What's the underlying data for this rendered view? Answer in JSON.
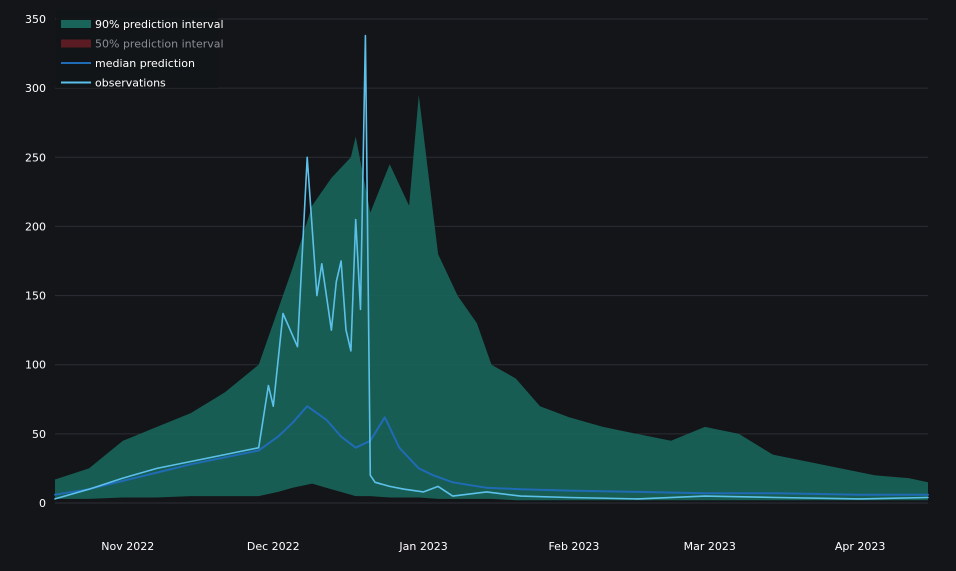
{
  "chart_data": {
    "type": "area",
    "title": "",
    "xlabel": "",
    "ylabel": "",
    "x_range": [
      "2022-10-17",
      "2023-04-15"
    ],
    "ylim": [
      0,
      350
    ],
    "y_ticks": [
      0,
      50,
      100,
      150,
      200,
      250,
      300,
      350
    ],
    "x_ticks": [
      {
        "date": "2022-11-01",
        "label": "Nov 2022"
      },
      {
        "date": "2022-12-01",
        "label": "Dec 2022"
      },
      {
        "date": "2023-01-01",
        "label": "Jan 2023"
      },
      {
        "date": "2023-02-01",
        "label": "Feb 2023"
      },
      {
        "date": "2023-03-01",
        "label": "Mar 2023"
      },
      {
        "date": "2023-04-01",
        "label": "Apr 2023"
      }
    ],
    "grid": "horizontal",
    "legend_position": "top-left",
    "legend": [
      {
        "label": "90% prediction interval",
        "color": "#1a655a",
        "kind": "band",
        "dim": false
      },
      {
        "label": "50% prediction interval",
        "color": "#5a1c22",
        "kind": "band",
        "dim": true
      },
      {
        "label": "median prediction",
        "color": "#1f6bb5",
        "kind": "line",
        "dim": false
      },
      {
        "label": "observations",
        "color": "#5cc1ea",
        "kind": "line",
        "dim": false
      }
    ],
    "colors": {
      "background": "#131519",
      "grid": "#2c2f36",
      "band90": "#1a655a",
      "band50": "#5a1c22",
      "median": "#1f6bb5",
      "observations": "#5cc1ea"
    },
    "series": [
      {
        "name": "90% prediction interval",
        "kind": "band",
        "x": [
          "2022-10-17",
          "2022-10-24",
          "2022-10-31",
          "2022-11-07",
          "2022-11-14",
          "2022-11-21",
          "2022-11-28",
          "2022-12-02",
          "2022-12-05",
          "2022-12-09",
          "2022-12-13",
          "2022-12-17",
          "2022-12-18",
          "2022-12-21",
          "2022-12-25",
          "2022-12-29",
          "2022-12-31",
          "2023-01-04",
          "2023-01-08",
          "2023-01-12",
          "2023-01-15",
          "2023-01-20",
          "2023-01-25",
          "2023-01-31",
          "2023-02-07",
          "2023-02-14",
          "2023-02-21",
          "2023-02-28",
          "2023-03-07",
          "2023-03-14",
          "2023-03-21",
          "2023-03-28",
          "2023-04-04",
          "2023-04-11",
          "2023-04-15"
        ],
        "upper": [
          17,
          25,
          45,
          55,
          65,
          80,
          100,
          140,
          170,
          215,
          235,
          250,
          265,
          210,
          245,
          215,
          295,
          180,
          150,
          130,
          100,
          90,
          70,
          62,
          55,
          50,
          45,
          55,
          50,
          35,
          30,
          25,
          20,
          18,
          15
        ],
        "lower": [
          3,
          3,
          4,
          4,
          5,
          5,
          5,
          8,
          11,
          14,
          10,
          6,
          5,
          5,
          4,
          4,
          4,
          3,
          3,
          3,
          3,
          2,
          2,
          2,
          2,
          2,
          2,
          2,
          2,
          2,
          2,
          2,
          2,
          2,
          2
        ]
      },
      {
        "name": "median prediction",
        "x": [
          "2022-10-17",
          "2022-10-24",
          "2022-10-31",
          "2022-11-07",
          "2022-11-14",
          "2022-11-21",
          "2022-11-28",
          "2022-12-02",
          "2022-12-05",
          "2022-12-08",
          "2022-12-12",
          "2022-12-15",
          "2022-12-18",
          "2022-12-21",
          "2022-12-24",
          "2022-12-27",
          "2022-12-31",
          "2023-01-03",
          "2023-01-07",
          "2023-01-14",
          "2023-01-21",
          "2023-01-31",
          "2023-02-14",
          "2023-02-28",
          "2023-03-15",
          "2023-04-01",
          "2023-04-15"
        ],
        "values": [
          6,
          10,
          16,
          22,
          28,
          33,
          38,
          48,
          58,
          70,
          60,
          48,
          40,
          45,
          62,
          40,
          25,
          20,
          15,
          11,
          10,
          9,
          8,
          7,
          7,
          6,
          6
        ]
      },
      {
        "name": "observations",
        "x": [
          "2022-10-17",
          "2022-10-24",
          "2022-10-31",
          "2022-11-07",
          "2022-11-14",
          "2022-11-21",
          "2022-11-28",
          "2022-11-30",
          "2022-12-01",
          "2022-12-03",
          "2022-12-06",
          "2022-12-08",
          "2022-12-10",
          "2022-12-11",
          "2022-12-13",
          "2022-12-14",
          "2022-12-15",
          "2022-12-16",
          "2022-12-17",
          "2022-12-18",
          "2022-12-19",
          "2022-12-20",
          "2022-12-21",
          "2022-12-22",
          "2022-12-25",
          "2022-12-28",
          "2023-01-01",
          "2023-01-04",
          "2023-01-07",
          "2023-01-14",
          "2023-01-21",
          "2023-01-31",
          "2023-02-14",
          "2023-02-28",
          "2023-03-15",
          "2023-04-01",
          "2023-04-15"
        ],
        "values": [
          3,
          10,
          18,
          25,
          30,
          35,
          40,
          85,
          70,
          137,
          113,
          250,
          150,
          173,
          125,
          160,
          175,
          125,
          110,
          205,
          140,
          338,
          20,
          15,
          12,
          10,
          8,
          12,
          5,
          8,
          5,
          4,
          3,
          5,
          4,
          3,
          4
        ]
      }
    ]
  }
}
